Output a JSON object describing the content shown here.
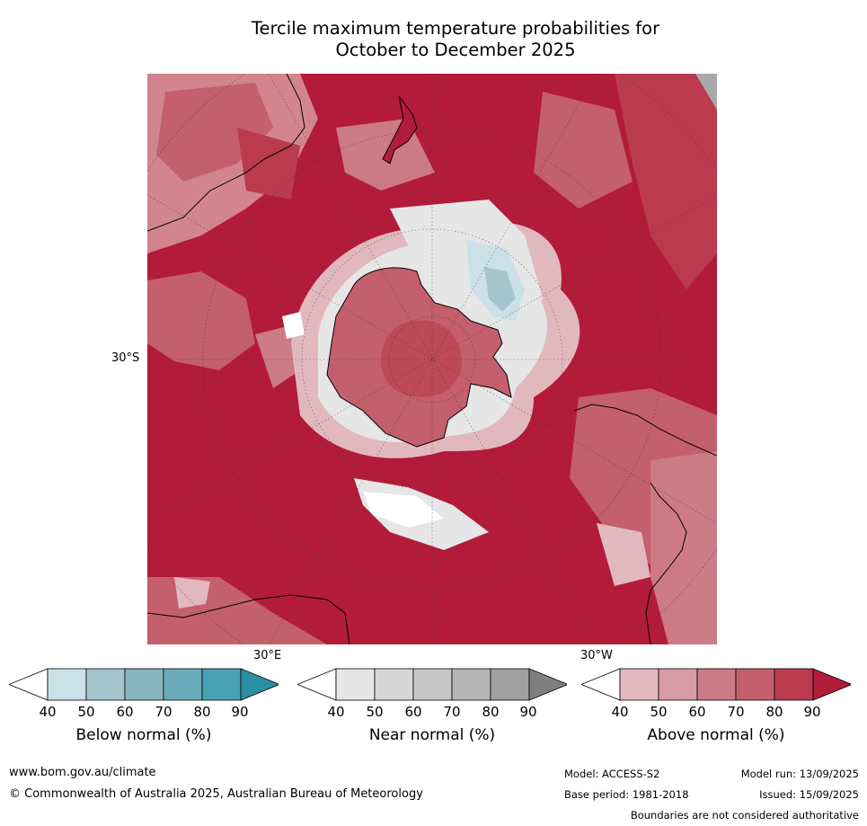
{
  "title_line1": "Tercile maximum temperature probabilities for",
  "title_line2": "October to December 2025",
  "map": {
    "projection": "south-polar-stereographic",
    "latitude_label": "30°S",
    "longitude_label_east": "30°E",
    "longitude_label_west": "30°W"
  },
  "colorbars": [
    {
      "label": "Below normal (%)",
      "ticks": [
        "40",
        "50",
        "60",
        "70",
        "80",
        "90"
      ],
      "colors": [
        "#ffffff",
        "#c9e1e7",
        "#a5c5cd",
        "#89b5bf",
        "#6aabbb",
        "#49a2b3",
        "#2b8fa3"
      ]
    },
    {
      "label": "Near normal (%)",
      "ticks": [
        "40",
        "50",
        "60",
        "70",
        "80",
        "90"
      ],
      "colors": [
        "#ffffff",
        "#e6e6e6",
        "#d7d7d7",
        "#c8c8c8",
        "#b5b5b5",
        "#a0a0a0",
        "#7f7f7f"
      ]
    },
    {
      "label": "Above normal (%)",
      "ticks": [
        "40",
        "50",
        "60",
        "70",
        "80",
        "90"
      ],
      "colors": [
        "#ffffff",
        "#e2b8bf",
        "#d89aa3",
        "#cc7a86",
        "#c45f6d",
        "#ba3b4d",
        "#b31b3a"
      ]
    }
  ],
  "footer": {
    "website": "www.bom.gov.au/climate",
    "copyright": "© Commonwealth of Australia 2025, Australian Bureau of Meteorology",
    "model": "Model: ACCESS-S2",
    "model_run": "Model run: 13/09/2025",
    "base_period": "Base period: 1981-2018",
    "issued": "Issued: 15/09/2025",
    "disclaimer": "Boundaries are not considered authoritative"
  }
}
